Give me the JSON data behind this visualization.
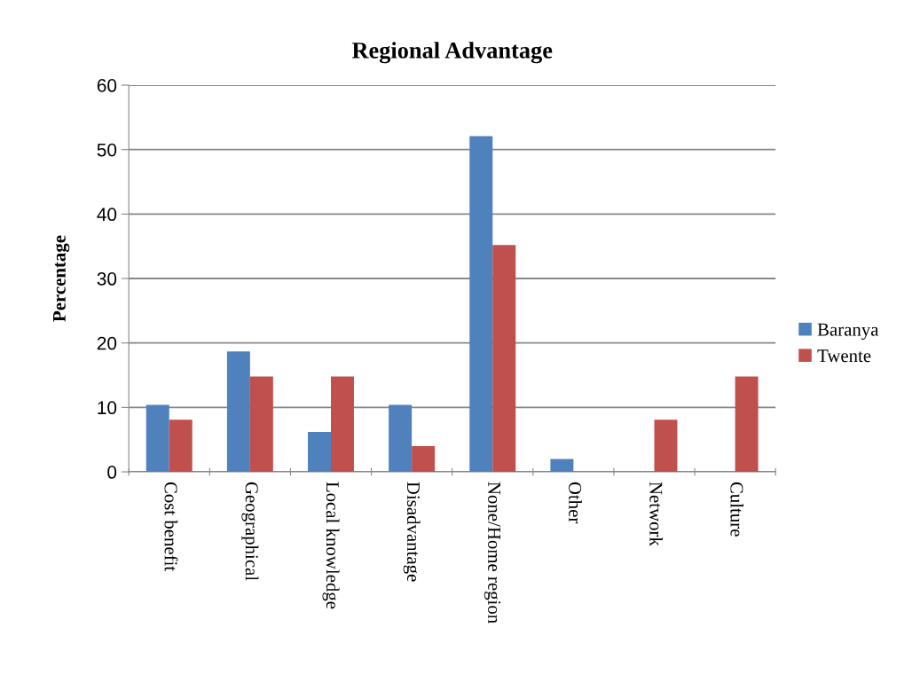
{
  "chart_data": {
    "type": "bar",
    "title": "Regional Advantage",
    "ylabel": "Percentage",
    "categories": [
      "Cost benefit",
      "Geographical",
      "Local knowledge",
      "Disadvantage",
      "None/Home region",
      "Other",
      "Network",
      "Culture"
    ],
    "series": [
      {
        "name": "Baranya",
        "color": "#4f81bd",
        "values": [
          10.4,
          18.7,
          6.2,
          10.4,
          52.1,
          2.0,
          0,
          0
        ]
      },
      {
        "name": "Twente",
        "color": "#c0504d",
        "values": [
          8.1,
          14.8,
          14.8,
          4.0,
          35.2,
          0,
          8.1,
          14.8
        ]
      }
    ],
    "ylim": [
      0,
      60
    ],
    "yticks": [
      0,
      10,
      20,
      30,
      40,
      50,
      60
    ],
    "grid": "y",
    "legend": "right"
  }
}
